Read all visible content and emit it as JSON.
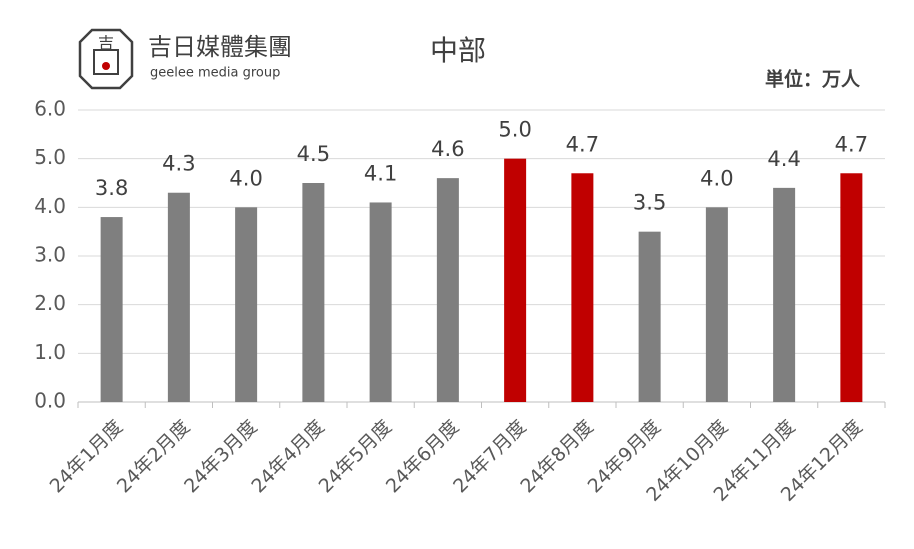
{
  "logo": {
    "mark": "吉",
    "name": "吉日媒體集團",
    "tagline": "geelee media group"
  },
  "chart_data": {
    "type": "bar",
    "title": "中部",
    "unit": "単位：万人",
    "categories": [
      "24年1月度",
      "24年2月度",
      "24年3月度",
      "24年4月度",
      "24年5月度",
      "24年6月度",
      "24年7月度",
      "24年8月度",
      "24年9月度",
      "24年10月度",
      "24年11月度",
      "24年12月度"
    ],
    "values": [
      3.8,
      4.3,
      4.0,
      4.5,
      4.1,
      4.6,
      5.0,
      4.7,
      3.5,
      4.0,
      4.4,
      4.7
    ],
    "value_labels": [
      "3.8",
      "4.3",
      "4.0",
      "4.5",
      "4.1",
      "4.6",
      "5.0",
      "4.7",
      "3.5",
      "4.0",
      "4.4",
      "4.7"
    ],
    "colors": [
      "#7f7f7f",
      "#7f7f7f",
      "#7f7f7f",
      "#7f7f7f",
      "#7f7f7f",
      "#7f7f7f",
      "#c00000",
      "#c00000",
      "#7f7f7f",
      "#7f7f7f",
      "#7f7f7f",
      "#c00000"
    ],
    "ylim": [
      0,
      6
    ],
    "yticks": [
      {
        "value": 0,
        "label": "0.0"
      },
      {
        "value": 1,
        "label": "1.0"
      },
      {
        "value": 2,
        "label": "2.0"
      },
      {
        "value": 3,
        "label": "3.0"
      },
      {
        "value": 4,
        "label": "4.0"
      },
      {
        "value": 5,
        "label": "5.0"
      },
      {
        "value": 6,
        "label": "6.0"
      }
    ],
    "grid": true
  }
}
